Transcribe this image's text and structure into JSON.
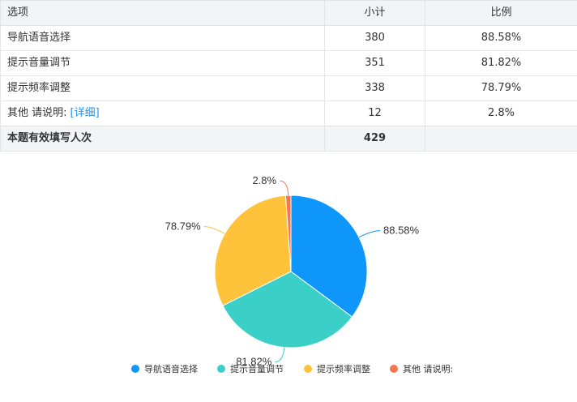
{
  "table": {
    "headers": {
      "option": "选项",
      "count": "小计",
      "ratio": "比例"
    },
    "rows": [
      {
        "option": "导航语音选择",
        "count": "380",
        "ratio": "88.58%"
      },
      {
        "option": "提示音量调节",
        "count": "351",
        "ratio": "81.82%"
      },
      {
        "option": "提示频率调整",
        "count": "338",
        "ratio": "78.79%"
      },
      {
        "option": "其他 请说明:",
        "detail": "[详细]",
        "count": "12",
        "ratio": "2.8%"
      }
    ],
    "total": {
      "label": "本题有效填写人次",
      "count": "429"
    }
  },
  "chart_data": {
    "type": "pie",
    "categories": [
      "导航语音选择",
      "提示音量调节",
      "提示频率调整",
      "其他 请说明:"
    ],
    "values": [
      88.58,
      81.82,
      78.79,
      2.8
    ],
    "labels": [
      "88.58%",
      "81.82%",
      "78.79%",
      "2.8%"
    ],
    "colors": [
      "#0f96fa",
      "#3bd0c7",
      "#ffc23b",
      "#f4764f"
    ],
    "legend": "bottom"
  }
}
